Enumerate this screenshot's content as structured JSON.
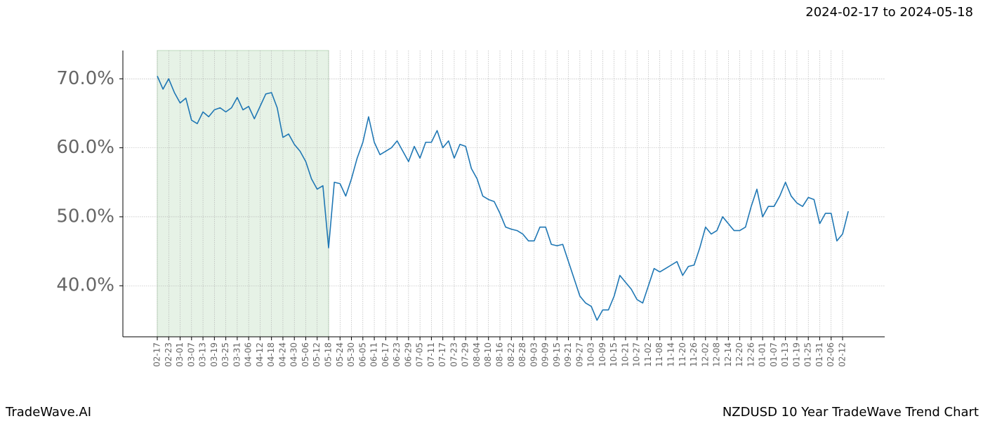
{
  "chart_data": {
    "type": "line",
    "title": "NZDUSD 10 Year TradeWave Trend Chart",
    "subtitle": "2024-02-17 to 2024-05-18",
    "brand": "TradeWave.AI",
    "categories": [
      "02-17",
      null,
      "02-23",
      null,
      "03-01",
      null,
      "03-07",
      null,
      "03-13",
      null,
      "03-19",
      null,
      "03-25",
      null,
      "03-31",
      null,
      "04-06",
      null,
      "04-12",
      null,
      "04-18",
      null,
      "04-24",
      null,
      "04-30",
      null,
      "05-06",
      null,
      "05-12",
      null,
      "05-18",
      null,
      "05-24",
      null,
      "05-30",
      null,
      "06-05",
      null,
      "06-11",
      null,
      "06-17",
      null,
      "06-23",
      null,
      "06-29",
      null,
      "07-05",
      null,
      "07-11",
      null,
      "07-17",
      null,
      "07-23",
      null,
      "07-29",
      null,
      "08-04",
      null,
      "08-10",
      null,
      "08-16",
      null,
      "08-22",
      null,
      "08-28",
      null,
      "09-03",
      null,
      "09-09",
      null,
      "09-15",
      null,
      "09-21",
      null,
      "09-27",
      null,
      "10-03",
      null,
      "10-09",
      null,
      "10-15",
      null,
      "10-21",
      null,
      "10-27",
      null,
      "11-02",
      null,
      "11-08",
      null,
      "11-14",
      null,
      "11-20",
      null,
      "11-26",
      null,
      "12-02",
      null,
      "12-08",
      null,
      "12-14",
      null,
      "12-20",
      null,
      "12-26",
      null,
      "01-01",
      null,
      "01-07",
      null,
      "01-13",
      null,
      "01-19",
      null,
      "01-25",
      null,
      "01-31",
      null,
      "02-06",
      null,
      "02-12",
      null
    ],
    "series": [
      {
        "color": "#1f77b4",
        "values": [
          70.4,
          68.5,
          70.0,
          68.0,
          66.5,
          67.2,
          64.0,
          63.5,
          65.2,
          64.5,
          65.5,
          65.8,
          65.2,
          65.8,
          67.3,
          65.5,
          66.0,
          64.2,
          66.0,
          67.8,
          68.0,
          65.8,
          61.5,
          62.0,
          60.5,
          59.5,
          58.0,
          55.5,
          54.0,
          54.5,
          45.5,
          55.0,
          54.8,
          53.0,
          55.5,
          58.5,
          60.8,
          64.5,
          60.8,
          59.0,
          59.5,
          60.0,
          61.0,
          59.5,
          58.0,
          60.2,
          58.5,
          60.8,
          60.8,
          62.5,
          60.0,
          61.0,
          58.5,
          60.5,
          60.2,
          57.0,
          55.5,
          53.0,
          52.5,
          52.2,
          50.5,
          48.5,
          48.2,
          48.0,
          47.5,
          46.5,
          46.5,
          48.5,
          48.5,
          46.0,
          45.8,
          46.0,
          43.5,
          41.0,
          38.5,
          37.5,
          37.0,
          35.0,
          36.5,
          36.5,
          38.5,
          41.5,
          40.5,
          39.5,
          38.0,
          37.5,
          40.0,
          42.5,
          42.0,
          42.5,
          43.0,
          43.5,
          41.5,
          42.8,
          43.0,
          45.5,
          48.5,
          47.5,
          48.0,
          50.0,
          49.0,
          48.0,
          48.0,
          48.5,
          51.5,
          54.0,
          50.0,
          51.5,
          51.5,
          53.0,
          55.0,
          53.0,
          52.0,
          51.5,
          52.8,
          52.5,
          49.0,
          50.5,
          50.5,
          46.5,
          47.5,
          50.8
        ]
      }
    ],
    "ylim": [
      32.6,
      74.1
    ],
    "yticks": [
      {
        "value": 40,
        "label": "40.0%"
      },
      {
        "value": 50,
        "label": "50.0%"
      },
      {
        "value": 60,
        "label": "60.0%"
      },
      {
        "value": 70,
        "label": "70.0%"
      }
    ],
    "grid": true,
    "highlight_color": "#e6f2e6"
  }
}
